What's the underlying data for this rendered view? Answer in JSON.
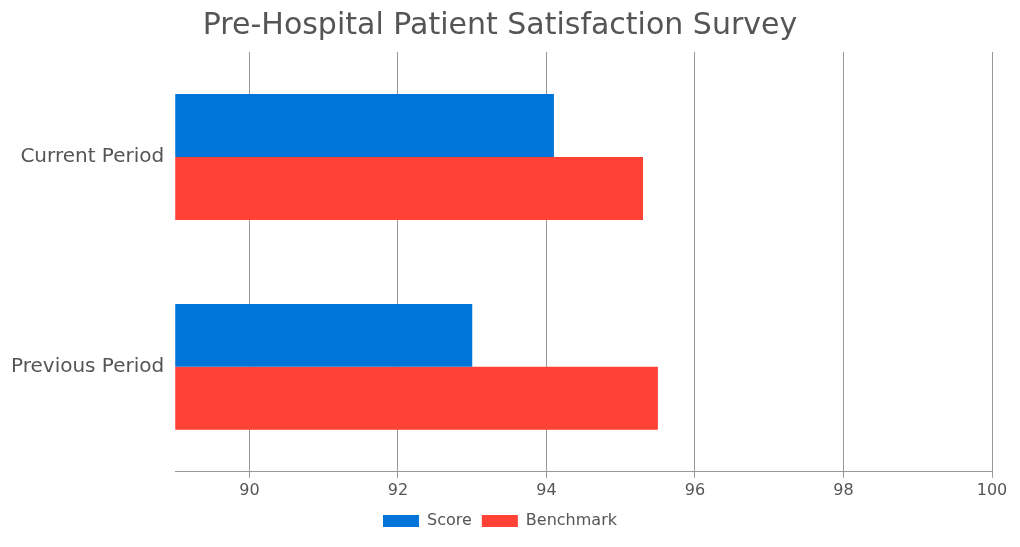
{
  "chart_data": {
    "type": "bar",
    "orientation": "horizontal",
    "title": "Pre-Hospital Patient Satisfaction Survey",
    "categories": [
      "Current Period",
      "Previous Period"
    ],
    "series": [
      {
        "name": "Score",
        "color": "#0074d9",
        "values": [
          94.1,
          93.0
        ]
      },
      {
        "name": "Benchmark",
        "color": "#ff4136",
        "values": [
          95.3,
          95.5
        ]
      }
    ],
    "xlim": [
      89,
      100
    ],
    "xticks": [
      90,
      92,
      94,
      96,
      98,
      100
    ],
    "grid": "x",
    "legend": "bottom"
  }
}
